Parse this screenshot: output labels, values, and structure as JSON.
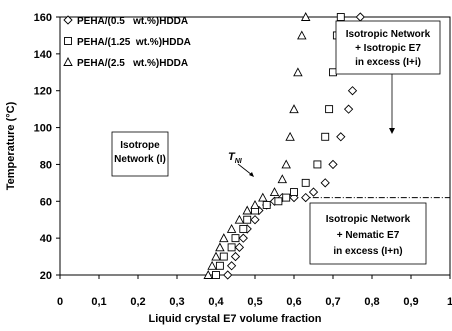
{
  "chart_data": {
    "type": "scatter",
    "xlabel": "Liquid crystal E7 volume fraction",
    "ylabel": "Temperature (°C)",
    "xlim": [
      0,
      1
    ],
    "ylim": [
      20,
      160
    ],
    "xticks": [
      "0",
      "0,1",
      "0,2",
      "0,3",
      "0,4",
      "0,5",
      "0,6",
      "0,7",
      "0,8",
      "0,9",
      "1"
    ],
    "yticks": [
      "20",
      "40",
      "60",
      "80",
      "100",
      "120",
      "140",
      "160"
    ],
    "grid": false,
    "legend_position": "top-left",
    "series": [
      {
        "name": "PEHA/(0.5   wt.%)HDDA",
        "marker": "diamond",
        "points": [
          [
            0.43,
            20
          ],
          [
            0.44,
            25
          ],
          [
            0.45,
            30
          ],
          [
            0.46,
            35
          ],
          [
            0.47,
            40
          ],
          [
            0.48,
            45
          ],
          [
            0.5,
            50
          ],
          [
            0.51,
            55
          ],
          [
            0.53,
            58
          ],
          [
            0.55,
            60
          ],
          [
            0.57,
            62
          ],
          [
            0.6,
            62
          ],
          [
            0.63,
            62
          ],
          [
            0.65,
            65
          ],
          [
            0.68,
            70
          ],
          [
            0.7,
            80
          ],
          [
            0.72,
            95
          ],
          [
            0.74,
            110
          ],
          [
            0.75,
            120
          ],
          [
            0.76,
            140
          ],
          [
            0.77,
            160
          ]
        ]
      },
      {
        "name": "PEHA/(1.25  wt.%)HDDA",
        "marker": "square",
        "points": [
          [
            0.4,
            20
          ],
          [
            0.41,
            25
          ],
          [
            0.42,
            30
          ],
          [
            0.44,
            35
          ],
          [
            0.45,
            40
          ],
          [
            0.47,
            45
          ],
          [
            0.48,
            50
          ],
          [
            0.5,
            55
          ],
          [
            0.53,
            58
          ],
          [
            0.56,
            60
          ],
          [
            0.58,
            62
          ],
          [
            0.6,
            65
          ],
          [
            0.63,
            70
          ],
          [
            0.66,
            80
          ],
          [
            0.68,
            95
          ],
          [
            0.69,
            110
          ],
          [
            0.7,
            130
          ],
          [
            0.71,
            150
          ],
          [
            0.72,
            160
          ]
        ]
      },
      {
        "name": "PEHA/(2.5   wt.%)HDDA",
        "marker": "triangle",
        "points": [
          [
            0.38,
            20
          ],
          [
            0.39,
            25
          ],
          [
            0.4,
            30
          ],
          [
            0.41,
            35
          ],
          [
            0.42,
            40
          ],
          [
            0.44,
            45
          ],
          [
            0.46,
            50
          ],
          [
            0.48,
            55
          ],
          [
            0.5,
            58
          ],
          [
            0.52,
            62
          ],
          [
            0.55,
            65
          ],
          [
            0.57,
            72
          ],
          [
            0.58,
            80
          ],
          [
            0.59,
            95
          ],
          [
            0.6,
            110
          ],
          [
            0.61,
            130
          ],
          [
            0.62,
            150
          ],
          [
            0.63,
            160
          ]
        ]
      }
    ],
    "annotations": [
      {
        "lines": [
          "Isotrope",
          "Network (I)"
        ]
      },
      {
        "lines": [
          "Isotropic Network",
          "+ Isotropic E7",
          "in excess (I+i)"
        ]
      },
      {
        "lines": [
          "Isotropic Network",
          "+ Nematic E7",
          "in excess (I+n)"
        ]
      },
      {
        "label": "T",
        "subscript": "NI"
      }
    ],
    "reference_line": {
      "y": 62,
      "x_start": 0.62,
      "x_end": 1.0,
      "style": "dash-dot"
    }
  }
}
